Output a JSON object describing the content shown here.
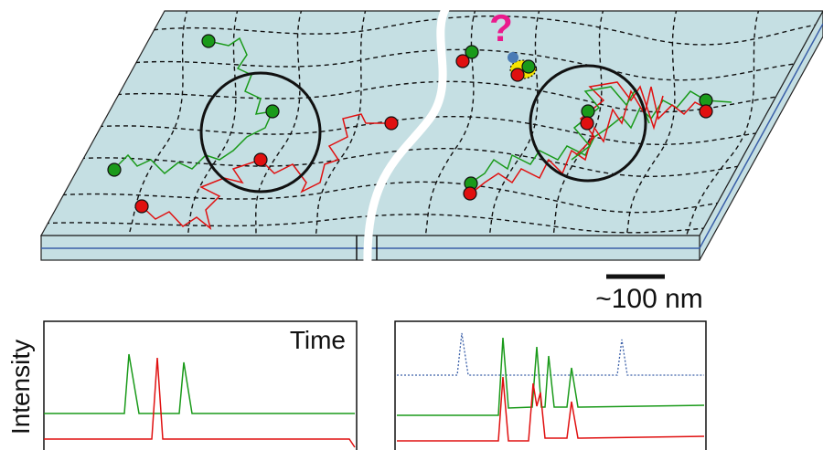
{
  "labels": {
    "question": "?",
    "scale_bar": "~100 nm",
    "y_axis": "Intensity",
    "x_axis": "Time"
  }
}
